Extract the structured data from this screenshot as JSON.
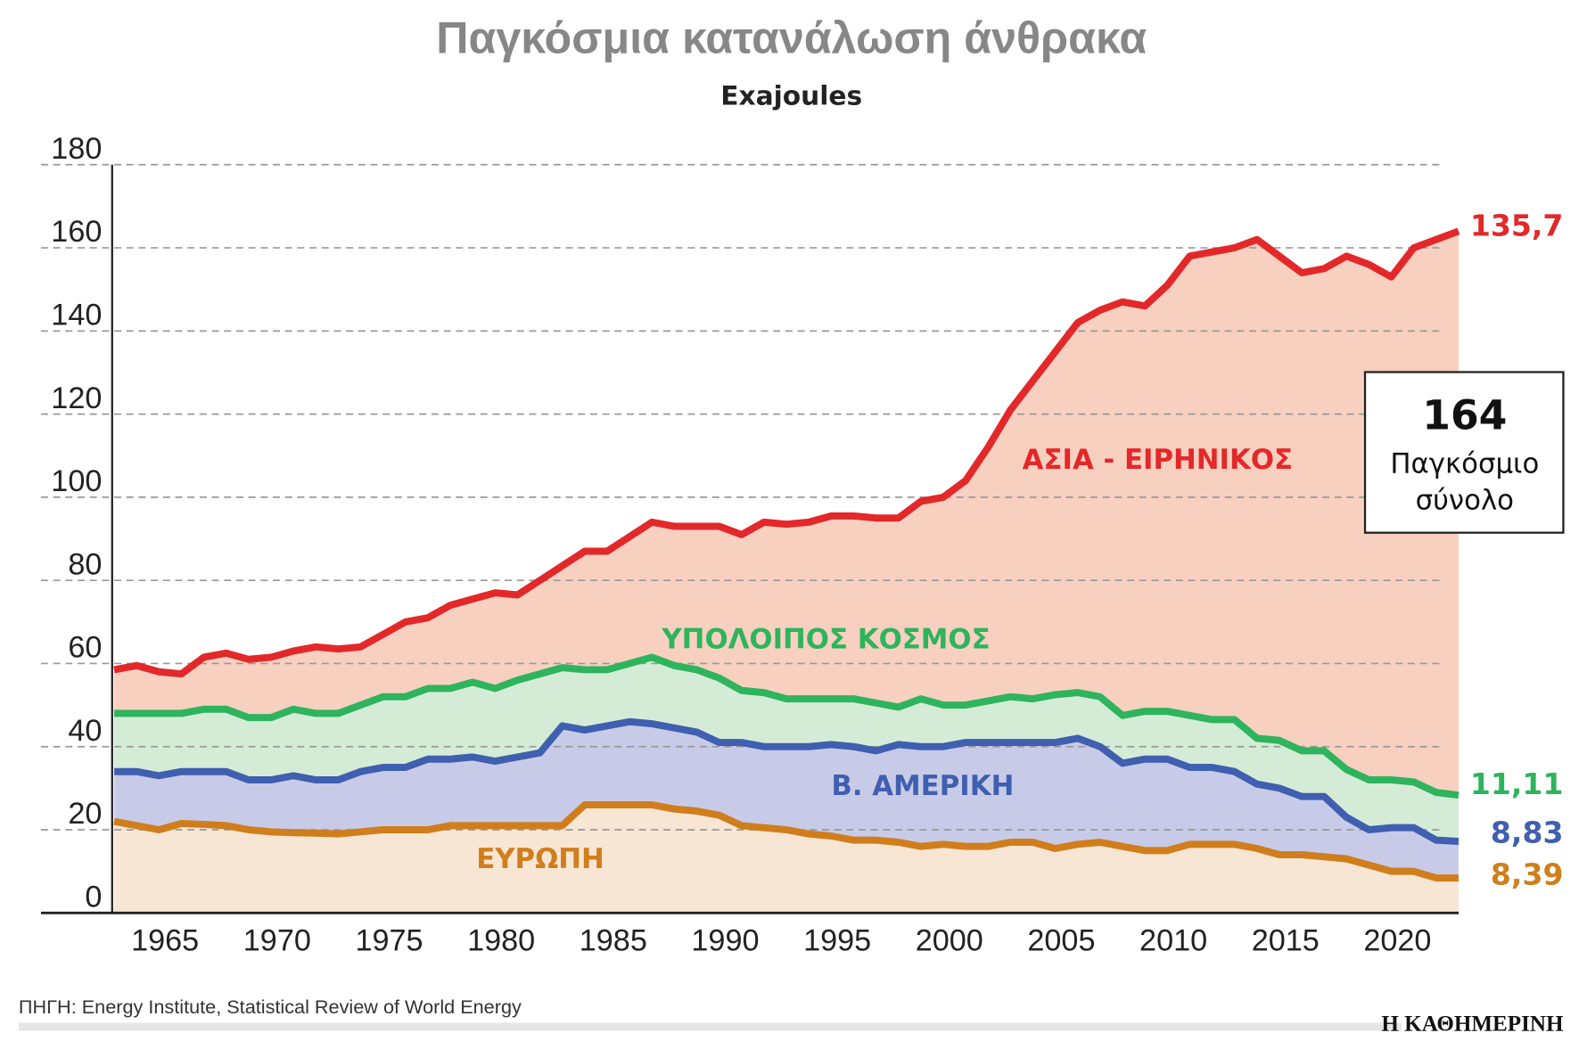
{
  "chart_data": {
    "type": "area",
    "title": "Παγκόσμια κατανάλωση άνθρακα",
    "subtitle": "Exajoules",
    "ylim": [
      0,
      180
    ],
    "yticks": [
      0,
      20,
      40,
      60,
      80,
      100,
      120,
      140,
      160,
      180
    ],
    "xticks": [
      1965,
      1970,
      1975,
      1980,
      1985,
      1990,
      1995,
      2000,
      2005,
      2010,
      2015,
      2020
    ],
    "xlim": [
      1963,
      2023
    ],
    "grid": true,
    "stacked": true,
    "x_start": 1963,
    "series": [
      {
        "name": "ΕΥΡΩΠΗ",
        "end_label": "8,39",
        "line_color": "#d07e1c",
        "fill_color": "#f8e6d4",
        "label_color": "#d07e1c",
        "values": [
          22,
          21,
          20,
          21.5,
          21.3,
          21,
          20,
          19.5,
          19.3,
          19.2,
          19,
          19.5,
          20,
          20,
          20,
          21,
          21,
          21,
          21,
          21,
          21,
          26,
          26,
          26,
          26,
          25,
          24.5,
          23.5,
          21,
          20.5,
          20,
          19,
          18.5,
          17.5,
          17.5,
          17,
          16,
          16.5,
          16,
          16,
          17,
          17,
          15.5,
          16.5,
          17,
          16,
          15,
          15,
          16.5,
          16.5,
          16.5,
          15.5,
          14,
          14,
          13.5,
          13,
          11.5,
          10,
          10,
          8.4,
          8.39
        ]
      },
      {
        "name": "Β. ΑΜΕΡΙΚΗ",
        "end_label": "8,83",
        "line_color": "#3f5fb0",
        "fill_color": "#c8cbe8",
        "label_color": "#3f5fb0",
        "values": [
          34,
          34,
          33,
          34,
          34,
          34,
          32,
          32,
          33,
          32,
          32,
          34,
          35,
          35,
          37,
          37,
          37.5,
          36.5,
          37.5,
          38.5,
          45,
          44,
          45,
          46,
          45.5,
          44.5,
          43.5,
          41,
          41,
          40,
          40,
          40,
          40.5,
          40,
          39,
          40.5,
          40,
          40,
          41,
          41,
          41,
          41,
          41,
          42,
          40,
          36,
          37,
          37,
          35,
          35,
          34,
          31,
          30,
          28,
          28,
          23,
          20,
          20.5,
          20.5,
          17.5,
          17.22
        ]
      },
      {
        "name": "ΥΠΟΛΟΙΠΟΣ ΚΟΣΜΟΣ",
        "end_label": "11,11",
        "line_color": "#2eb45c",
        "fill_color": "#d4ecd6",
        "label_color": "#2eb45c",
        "values": [
          48,
          48,
          48,
          48,
          49,
          49,
          47,
          47,
          49,
          48,
          48,
          50,
          52,
          52,
          54,
          54,
          55.5,
          54,
          56,
          57.5,
          59,
          58.5,
          58.5,
          60,
          61.5,
          59.5,
          58.5,
          56.5,
          53.5,
          53,
          51.5,
          51.5,
          51.5,
          51.5,
          50.5,
          49.5,
          51.5,
          50,
          50,
          51,
          52,
          51.5,
          52.5,
          53,
          52,
          47.5,
          48.5,
          48.5,
          47.5,
          46.5,
          46.5,
          42,
          41.5,
          39,
          39,
          34.5,
          32,
          32,
          31.5,
          29,
          28.33
        ]
      },
      {
        "name": "ΑΣΙΑ - ΕΙΡΗΝΙΚΟΣ",
        "end_label": "135,7",
        "line_color": "#e3282a",
        "fill_color": "#f8d0c0",
        "label_color": "#e3282a",
        "values": [
          58.5,
          59.5,
          58,
          57.5,
          61.5,
          62.5,
          61,
          61.5,
          63,
          64,
          63.5,
          64,
          67,
          70,
          71,
          74,
          75.5,
          77,
          76.5,
          80,
          83.5,
          87,
          87,
          90.5,
          94,
          93,
          93,
          93,
          91,
          94,
          93.5,
          94,
          95.5,
          95.5,
          95,
          95,
          99,
          100,
          104,
          112,
          121,
          128,
          135,
          142,
          145,
          147,
          146,
          151,
          158,
          159,
          160,
          162,
          158,
          154,
          155,
          158,
          156,
          153,
          160,
          162,
          164
        ]
      }
    ],
    "total_box": {
      "value": "164",
      "label_line1": "Παγκόσμιο",
      "label_line2": "σύνολο"
    }
  },
  "footer": {
    "source": "ΠΗΓΗ: Energy Institute, Statistical Review of World Energy",
    "logo": "Η ΚΑΘΗΜΕΡΙΝΗ"
  }
}
